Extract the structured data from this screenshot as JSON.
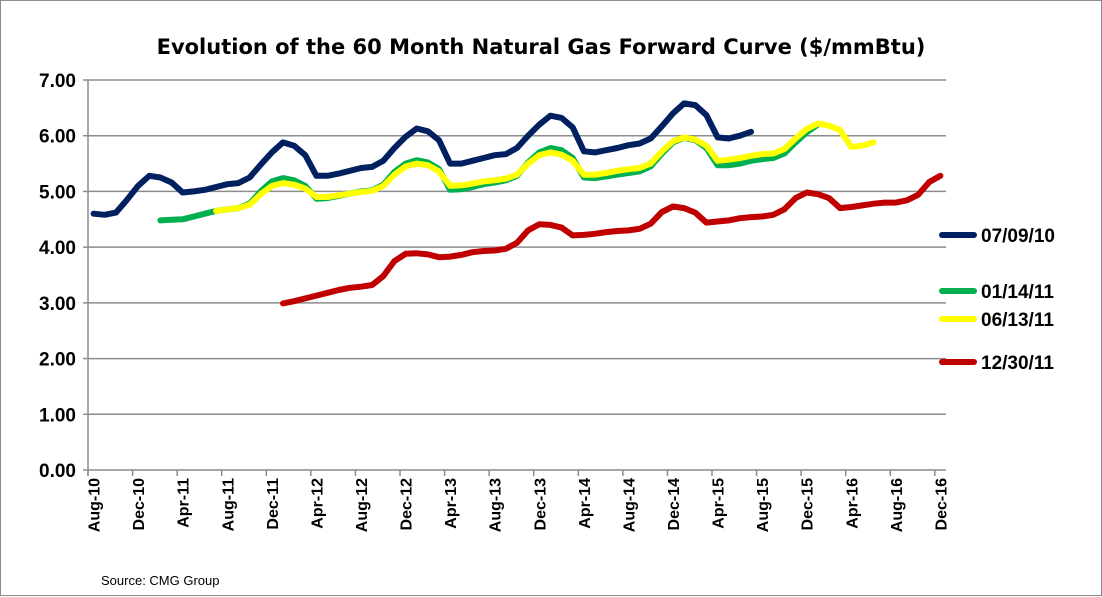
{
  "chart_data": {
    "type": "line",
    "title": "Evolution of the 60 Month Natural Gas Forward Curve ($/mmBtu)",
    "source": "Source: CMG Group",
    "xlabel": "",
    "ylabel": "",
    "ylim": [
      0,
      7
    ],
    "yticks": [
      "0.00",
      "1.00",
      "2.00",
      "3.00",
      "4.00",
      "5.00",
      "6.00",
      "7.00"
    ],
    "x_start": "Aug-10",
    "x_end": "Dec-16",
    "xtick_labels": [
      "Aug-10",
      "Dec-10",
      "Apr-11",
      "Aug-11",
      "Dec-11",
      "Apr-12",
      "Aug-12",
      "Dec-12",
      "Apr-13",
      "Aug-13",
      "Dec-13",
      "Apr-14",
      "Aug-14",
      "Dec-14",
      "Apr-15",
      "Aug-15",
      "Dec-15",
      "Apr-16",
      "Aug-16",
      "Dec-16"
    ],
    "grid": "horizontal",
    "legend": "right",
    "series": [
      {
        "name": "07/09/10",
        "color": "#002060",
        "start": "Aug-10",
        "values": [
          4.6,
          4.58,
          4.62,
          4.85,
          5.1,
          5.28,
          5.25,
          5.16,
          4.98,
          5.0,
          5.03,
          5.08,
          5.13,
          5.15,
          5.25,
          5.48,
          5.7,
          5.88,
          5.82,
          5.65,
          5.28,
          5.28,
          5.32,
          5.37,
          5.42,
          5.44,
          5.55,
          5.78,
          5.98,
          6.13,
          6.08,
          5.92,
          5.5,
          5.5,
          5.55,
          5.6,
          5.65,
          5.67,
          5.78,
          6.0,
          6.2,
          6.36,
          6.32,
          6.15,
          5.72,
          5.7,
          5.74,
          5.78,
          5.83,
          5.86,
          5.95,
          6.17,
          6.4,
          6.58,
          6.55,
          6.37,
          5.97,
          5.95,
          6.0,
          6.07
        ]
      },
      {
        "name": "01/14/11",
        "color": "#00B050",
        "start": "Feb-11",
        "values": [
          4.48,
          4.49,
          4.5,
          4.55,
          4.6,
          4.65,
          4.68,
          4.7,
          4.78,
          5.0,
          5.18,
          5.24,
          5.2,
          5.1,
          4.87,
          4.88,
          4.92,
          4.96,
          5.0,
          5.02,
          5.12,
          5.35,
          5.5,
          5.56,
          5.52,
          5.4,
          5.03,
          5.04,
          5.08,
          5.13,
          5.16,
          5.2,
          5.28,
          5.52,
          5.7,
          5.78,
          5.74,
          5.6,
          5.25,
          5.24,
          5.27,
          5.3,
          5.33,
          5.36,
          5.45,
          5.68,
          5.88,
          5.96,
          5.92,
          5.78,
          5.47,
          5.47,
          5.5,
          5.55,
          5.58,
          5.6,
          5.68,
          5.88,
          6.06,
          6.2
        ]
      },
      {
        "name": "06/13/11",
        "color": "#FFFF00",
        "start": "Jul-11",
        "values": [
          4.65,
          4.68,
          4.7,
          4.76,
          4.95,
          5.1,
          5.15,
          5.12,
          5.05,
          4.9,
          4.9,
          4.93,
          4.96,
          4.99,
          5.01,
          5.1,
          5.3,
          5.45,
          5.5,
          5.47,
          5.36,
          5.1,
          5.11,
          5.14,
          5.18,
          5.2,
          5.23,
          5.3,
          5.5,
          5.65,
          5.7,
          5.66,
          5.55,
          5.3,
          5.3,
          5.33,
          5.37,
          5.4,
          5.42,
          5.5,
          5.72,
          5.9,
          5.97,
          5.93,
          5.82,
          5.55,
          5.57,
          5.6,
          5.64,
          5.67,
          5.68,
          5.76,
          5.95,
          6.12,
          6.22,
          6.18,
          6.1,
          5.8,
          5.82,
          5.88
        ]
      },
      {
        "name": "12/30/11",
        "color": "#C00000",
        "start": "Jan-12",
        "values": [
          2.99,
          3.03,
          3.08,
          3.13,
          3.18,
          3.23,
          3.27,
          3.29,
          3.32,
          3.48,
          3.75,
          3.88,
          3.89,
          3.87,
          3.82,
          3.83,
          3.86,
          3.91,
          3.93,
          3.94,
          3.97,
          4.08,
          4.3,
          4.41,
          4.4,
          4.35,
          4.21,
          4.22,
          4.24,
          4.27,
          4.29,
          4.3,
          4.33,
          4.42,
          4.63,
          4.73,
          4.7,
          4.62,
          4.44,
          4.46,
          4.48,
          4.52,
          4.54,
          4.55,
          4.58,
          4.68,
          4.88,
          4.98,
          4.95,
          4.88,
          4.7,
          4.72,
          4.75,
          4.78,
          4.8,
          4.8,
          4.84,
          4.94,
          5.17,
          5.28
        ]
      }
    ]
  }
}
